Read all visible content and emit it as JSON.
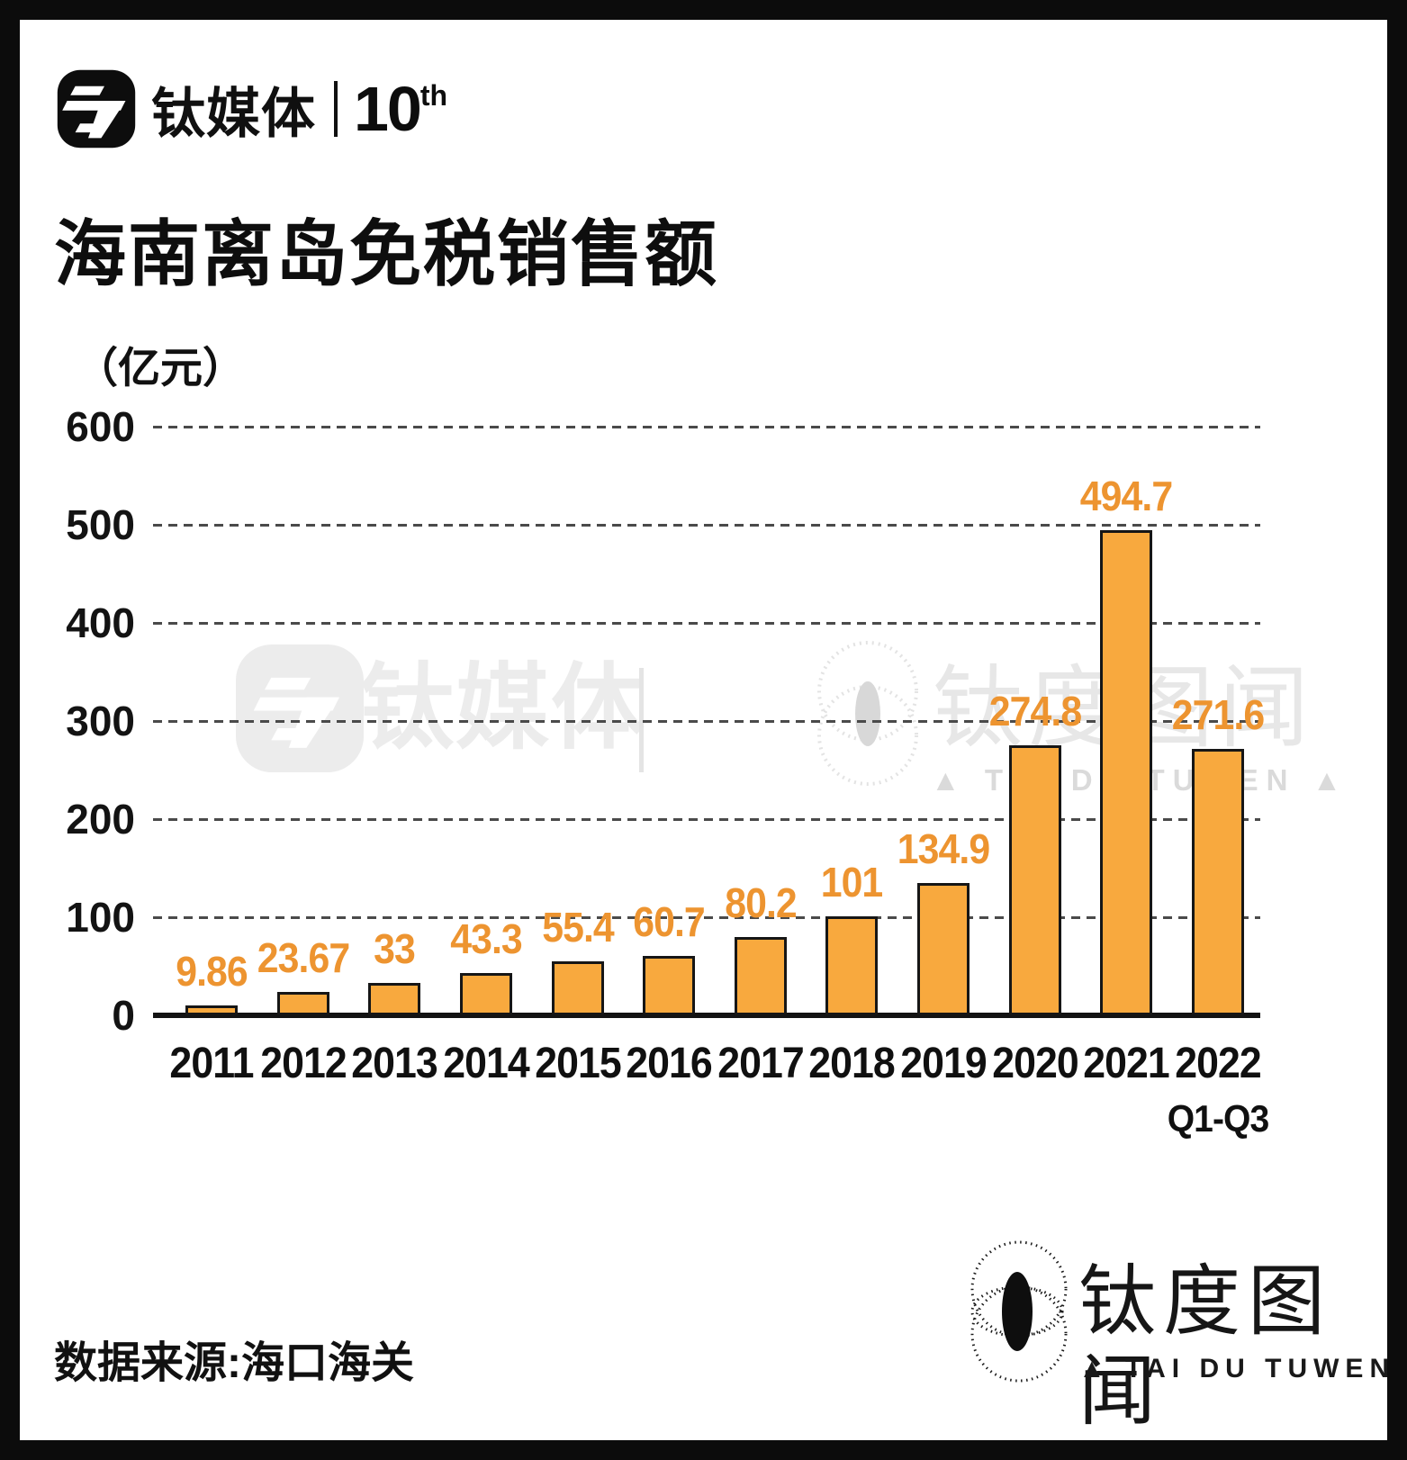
{
  "brand": {
    "logo_text": "钛媒体",
    "anniversary": "10",
    "anniversary_suffix": "th"
  },
  "title": "海南离岛免税销售额",
  "chart_data": {
    "type": "bar",
    "title": "海南离岛免税销售额",
    "ylabel": "（亿元）",
    "unit_label": "（亿元）",
    "categories": [
      "2011",
      "2012",
      "2013",
      "2014",
      "2015",
      "2016",
      "2017",
      "2018",
      "2019",
      "2020",
      "2021",
      "2022"
    ],
    "category_sublabels": [
      "",
      "",
      "",
      "",
      "",
      "",
      "",
      "",
      "",
      "",
      "",
      "Q1-Q3"
    ],
    "values": [
      9.86,
      23.67,
      33,
      43.3,
      55.4,
      60.7,
      80.2,
      101,
      134.9,
      274.8,
      494.7,
      271.6
    ],
    "value_labels": [
      "9.86",
      "23.67",
      "33",
      "43.3",
      "55.4",
      "60.7",
      "80.2",
      "101",
      "134.9",
      "274.8",
      "494.7",
      "271.6"
    ],
    "ylim": [
      0,
      600
    ],
    "yticks": [
      0,
      100,
      200,
      300,
      400,
      500,
      600
    ],
    "grid": "horizontal-dashed",
    "legend": "none",
    "bar_color": "#F8A93E",
    "bar_border_color": "#161616",
    "value_label_color": "#ED9430"
  },
  "watermark": {
    "logo_text": "钛媒体",
    "brand2": "钛度图闻",
    "latin": "▲  TAI  DU  TUWEN  ▲"
  },
  "footer": {
    "source": "数据来源:海口海关",
    "brand": "钛度图闻",
    "brand_latin": "▲ TAI DU TUWEN ▲"
  }
}
